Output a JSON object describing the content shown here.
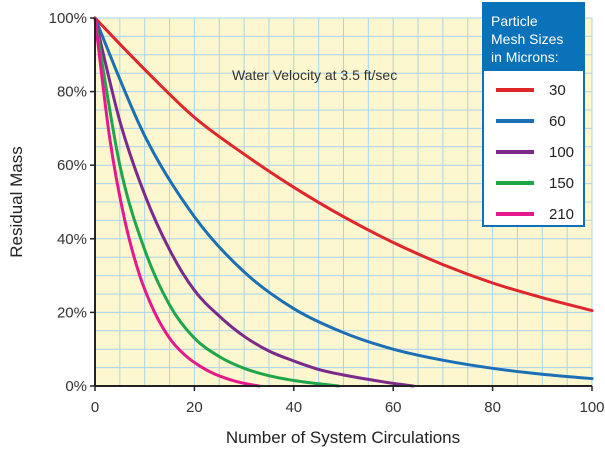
{
  "chart_data": {
    "type": "line",
    "title": "",
    "xlabel": "Number of System Circulations",
    "ylabel": "Residual Mass",
    "xlim": [
      0,
      100
    ],
    "ylim": [
      0,
      100
    ],
    "x_ticks": [
      0,
      20,
      40,
      60,
      80,
      100
    ],
    "y_ticks": [
      0,
      20,
      40,
      60,
      80,
      100
    ],
    "x_tick_labels": [
      "0",
      "20",
      "40",
      "60",
      "80",
      "100"
    ],
    "y_tick_labels": [
      "0%",
      "20%",
      "40%",
      "60%",
      "80%",
      "100%"
    ],
    "grid": true,
    "annotation": "Water Velocity at 3.5 ft/sec",
    "legend": {
      "title_lines": [
        "Particle",
        "Mesh Sizes",
        "in Microns:"
      ],
      "placement": "top-right"
    },
    "colors": {
      "plot_background": "#FDF7CF",
      "grid": "#A9D4EE",
      "axis": "#222222",
      "legend_header": "#0A72B8"
    },
    "series": [
      {
        "name": "30",
        "color": "#E0262A",
        "x": [
          0,
          10,
          20,
          30,
          40,
          50,
          60,
          70,
          80,
          90,
          100
        ],
        "y": [
          100,
          86,
          73,
          63,
          54,
          46,
          39,
          33,
          28,
          24,
          20.5
        ]
      },
      {
        "name": "60",
        "color": "#1B6FB5",
        "x": [
          0,
          10,
          20,
          30,
          40,
          50,
          60,
          70,
          80,
          90,
          100
        ],
        "y": [
          100,
          68,
          46,
          31,
          21,
          14.5,
          10,
          7,
          4.8,
          3.2,
          2
        ]
      },
      {
        "name": "100",
        "color": "#7B2A8C",
        "x": [
          0,
          5,
          10,
          15,
          20,
          25,
          30,
          35,
          40,
          45,
          50,
          55,
          60,
          64
        ],
        "y": [
          100,
          72,
          52,
          37,
          26,
          19,
          13.5,
          9.5,
          6.8,
          4.5,
          3,
          1.8,
          0.7,
          0
        ]
      },
      {
        "name": "150",
        "color": "#1FA64A",
        "x": [
          0,
          5,
          10,
          15,
          20,
          25,
          30,
          35,
          40,
          45,
          49
        ],
        "y": [
          100,
          60,
          37,
          22,
          13,
          8,
          4.8,
          2.8,
          1.5,
          0.6,
          0
        ]
      },
      {
        "name": "210",
        "color": "#E5198C",
        "x": [
          0,
          3,
          6,
          9,
          12,
          15,
          18,
          21,
          24,
          27,
          30,
          33
        ],
        "y": [
          100,
          67,
          45,
          30,
          20,
          13,
          8.5,
          5.5,
          3.3,
          1.8,
          0.7,
          0
        ]
      }
    ]
  }
}
